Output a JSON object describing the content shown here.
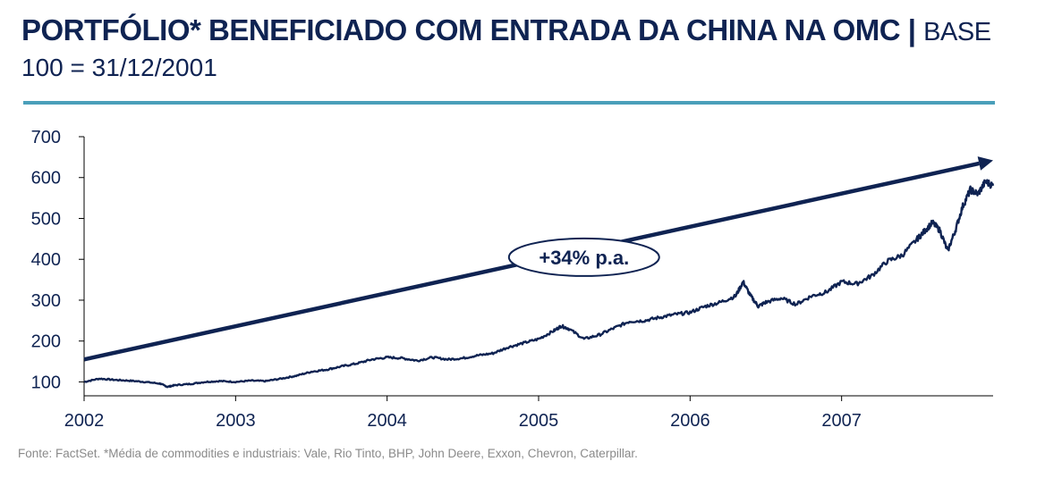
{
  "header": {
    "title_bold": "PORTFÓLIO* BENEFICIADO COM ENTRADA DA CHINA NA OMC",
    "title_sep": " | ",
    "title_light": "BASE",
    "subtitle": "100 = 31/12/2001"
  },
  "footer": {
    "source": "Fonte: FactSet. *Média de commodities e industriais: Vale, Rio Tinto, BHP, John Deere, Exxon, Chevron, Caterpillar."
  },
  "colors": {
    "navy": "#0f2352",
    "rule": "#4a9fba"
  },
  "chart_data": {
    "type": "line",
    "title": "PORTFÓLIO* BENEFICIADO COM ENTRADA DA CHINA NA OMC | BASE 100 = 31/12/2001",
    "xlabel": "",
    "ylabel": "",
    "xlim": [
      2002.0,
      2008.0
    ],
    "ylim": [
      66,
      700
    ],
    "yticks": [
      100,
      200,
      300,
      400,
      500,
      600,
      700
    ],
    "xticks": [
      {
        "value": 2002,
        "label": "2002"
      },
      {
        "value": 2003,
        "label": "2003"
      },
      {
        "value": 2004,
        "label": "2004"
      },
      {
        "value": 2005,
        "label": "2005"
      },
      {
        "value": 2006,
        "label": "2006"
      },
      {
        "value": 2007,
        "label": "2007"
      }
    ],
    "series": [
      {
        "name": "Portfólio",
        "x": [
          2002.0,
          2002.1,
          2002.2,
          2002.3,
          2002.4,
          2002.5,
          2002.55,
          2002.6,
          2002.7,
          2002.8,
          2002.9,
          2003.0,
          2003.1,
          2003.2,
          2003.3,
          2003.4,
          2003.5,
          2003.6,
          2003.7,
          2003.8,
          2003.9,
          2004.0,
          2004.1,
          2004.2,
          2004.3,
          2004.4,
          2004.5,
          2004.6,
          2004.7,
          2004.8,
          2004.9,
          2005.0,
          2005.1,
          2005.15,
          2005.2,
          2005.3,
          2005.4,
          2005.5,
          2005.6,
          2005.7,
          2005.8,
          2005.9,
          2006.0,
          2006.1,
          2006.2,
          2006.3,
          2006.35,
          2006.4,
          2006.45,
          2006.5,
          2006.6,
          2006.7,
          2006.8,
          2006.9,
          2007.0,
          2007.1,
          2007.2,
          2007.3,
          2007.4,
          2007.5,
          2007.55,
          2007.6,
          2007.65,
          2007.7,
          2007.75,
          2007.8,
          2007.85,
          2007.9,
          2007.95,
          2008.0
        ],
        "values": [
          100,
          108,
          105,
          103,
          100,
          96,
          88,
          92,
          95,
          100,
          102,
          100,
          103,
          102,
          108,
          115,
          125,
          130,
          138,
          145,
          155,
          160,
          158,
          152,
          160,
          155,
          158,
          165,
          170,
          185,
          195,
          205,
          225,
          237,
          230,
          205,
          215,
          232,
          248,
          250,
          258,
          265,
          270,
          285,
          295,
          310,
          345,
          310,
          285,
          295,
          305,
          290,
          310,
          320,
          345,
          340,
          360,
          395,
          410,
          450,
          470,
          490,
          470,
          420,
          470,
          530,
          570,
          560,
          590,
          580
        ]
      }
    ],
    "trend_arrow": {
      "start": {
        "x": 2002.0,
        "y": 155
      },
      "end": {
        "x": 2008.0,
        "y": 642
      }
    },
    "annotations": [
      {
        "text": "+34% p.a.",
        "x": 2005.3,
        "y": 405
      }
    ]
  }
}
